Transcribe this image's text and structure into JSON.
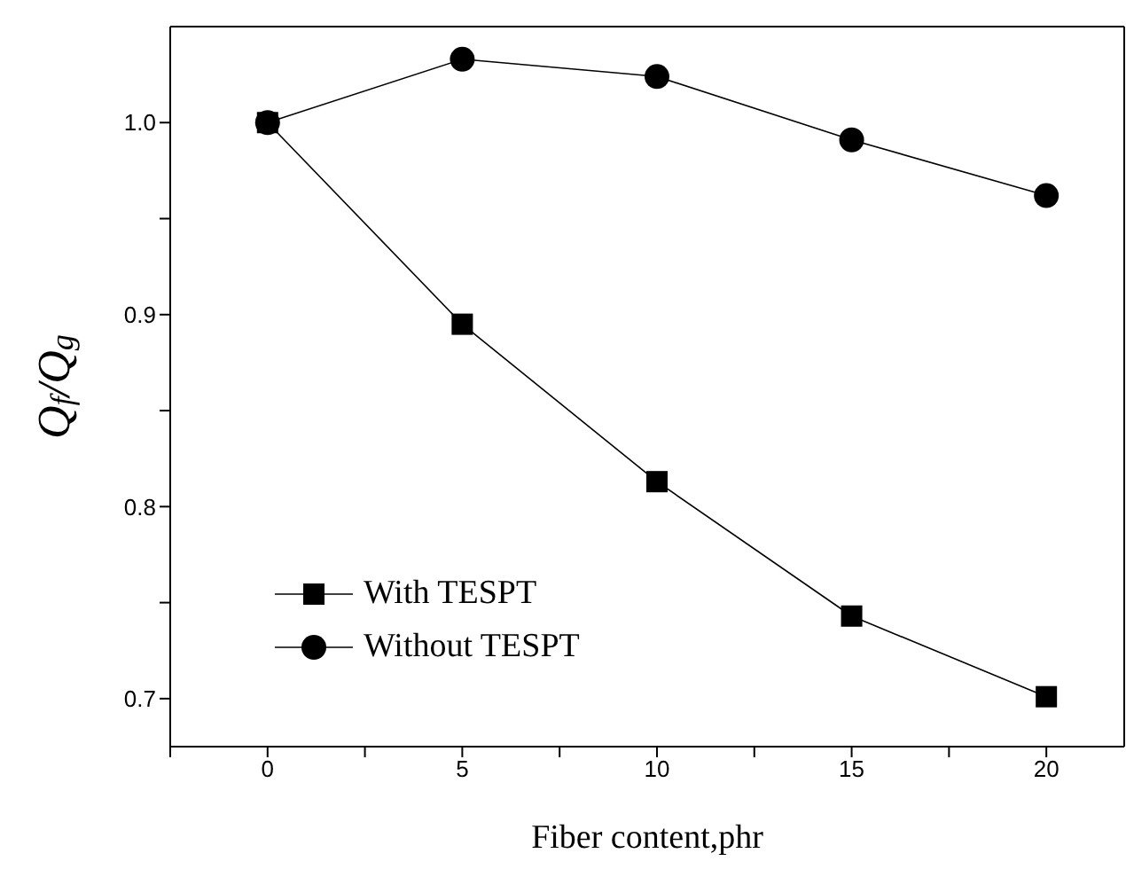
{
  "chart_data": {
    "type": "line",
    "xlabel": "Fiber content,phr",
    "ylabel": "Q$_{f}$/Q$_{g}$",
    "x": [
      0,
      5,
      10,
      15,
      20
    ],
    "series": [
      {
        "name": "With TESPT",
        "color": "#000000",
        "marker": "square",
        "values": [
          1.0,
          0.895,
          0.813,
          0.743,
          0.701
        ]
      },
      {
        "name": "Without TESPT",
        "color": "#000000",
        "marker": "circle",
        "values": [
          1.0,
          1.033,
          1.024,
          0.991,
          0.962
        ]
      }
    ],
    "xlim": [
      -2.5,
      22
    ],
    "xticks": [
      {
        "value": -2.5,
        "label": null
      },
      0,
      {
        "value": 2.5,
        "label": null
      },
      5,
      {
        "value": 7.5,
        "label": null
      },
      10,
      {
        "value": 12.5,
        "label": null
      },
      15,
      {
        "value": 17.5,
        "label": null
      },
      20
    ],
    "ylim": [
      0.675,
      1.05
    ],
    "yticks": [
      0.7,
      {
        "value": 0.75,
        "label": null
      },
      0.8,
      {
        "value": 0.85,
        "label": null
      },
      0.9,
      {
        "value": 0.95,
        "label": null
      },
      {
        "value": 1.0,
        "label": "1.0"
      }
    ],
    "legend": "bottom left",
    "grid": false,
    "line_style": "solid"
  }
}
